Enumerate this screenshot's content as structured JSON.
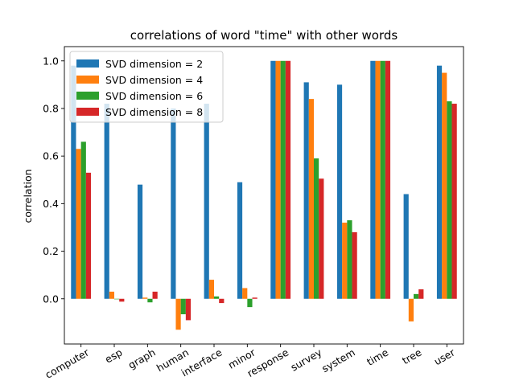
{
  "chart_data": {
    "type": "bar",
    "title": "correlations of word \"time\" with other words",
    "xlabel": "",
    "ylabel": "correlation",
    "ylim": [
      -0.19,
      1.06
    ],
    "yticks": [
      "0.0",
      "0.2",
      "0.4",
      "0.6",
      "0.8",
      "1.0"
    ],
    "grid": false,
    "legend_position": "top-left",
    "categories": [
      "computer",
      "esp",
      "graph",
      "human",
      "interface",
      "minor",
      "response",
      "survey",
      "system",
      "time",
      "tree",
      "user"
    ],
    "series": [
      {
        "name": "SVD dimension = 2",
        "color": "#1f77b4",
        "values": [
          0.98,
          0.82,
          0.48,
          0.8,
          0.82,
          0.49,
          1.0,
          0.91,
          0.9,
          1.0,
          0.44,
          0.98
        ]
      },
      {
        "name": "SVD dimension = 4",
        "color": "#ff7f0e",
        "values": [
          0.63,
          0.03,
          0.005,
          -0.13,
          0.08,
          0.045,
          1.0,
          0.84,
          0.32,
          1.0,
          -0.095,
          0.95
        ]
      },
      {
        "name": "SVD dimension = 6",
        "color": "#2ca02c",
        "values": [
          0.66,
          0.0,
          -0.015,
          -0.065,
          0.01,
          -0.035,
          1.0,
          0.59,
          0.33,
          1.0,
          0.02,
          0.83
        ]
      },
      {
        "name": "SVD dimension = 8",
        "color": "#d62728",
        "values": [
          0.53,
          -0.012,
          0.03,
          -0.09,
          -0.018,
          0.005,
          1.0,
          0.505,
          0.28,
          1.0,
          0.04,
          0.82
        ]
      }
    ]
  }
}
